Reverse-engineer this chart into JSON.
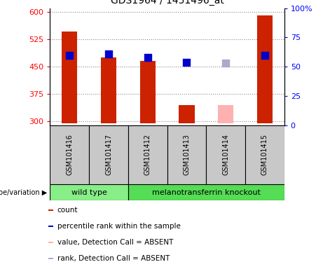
{
  "title": "GDS1964 / 1451496_at",
  "samples": [
    "GSM101416",
    "GSM101417",
    "GSM101412",
    "GSM101413",
    "GSM101414",
    "GSM101415"
  ],
  "count_values": [
    545,
    475,
    465,
    345,
    null,
    590
  ],
  "count_values_absent": [
    null,
    null,
    null,
    null,
    345,
    null
  ],
  "percentile_values": [
    480,
    485,
    475,
    462,
    null,
    480
  ],
  "percentile_values_absent": [
    null,
    null,
    null,
    null,
    460,
    null
  ],
  "ylim_left": [
    290,
    610
  ],
  "ylim_right": [
    0,
    100
  ],
  "yticks_left": [
    300,
    375,
    450,
    525,
    600
  ],
  "yticks_right": [
    0,
    25,
    50,
    75,
    100
  ],
  "bar_color_present": "#cc2200",
  "bar_color_absent": "#ffb0b0",
  "dot_color_present": "#0000cc",
  "dot_color_absent": "#aaaacc",
  "bg_color_label": "#c8c8c8",
  "bg_color_wildtype": "#88ee88",
  "bg_color_knockout": "#55dd55",
  "wild_type_samples": [
    0,
    1
  ],
  "knockout_samples": [
    2,
    3,
    4,
    5
  ],
  "dotted_line_color": "#888888",
  "bar_bottom": 295,
  "legend_items": [
    [
      "#cc2200",
      "count"
    ],
    [
      "#0000cc",
      "percentile rank within the sample"
    ],
    [
      "#ffb0b0",
      "value, Detection Call = ABSENT"
    ],
    [
      "#aaaacc",
      "rank, Detection Call = ABSENT"
    ]
  ]
}
